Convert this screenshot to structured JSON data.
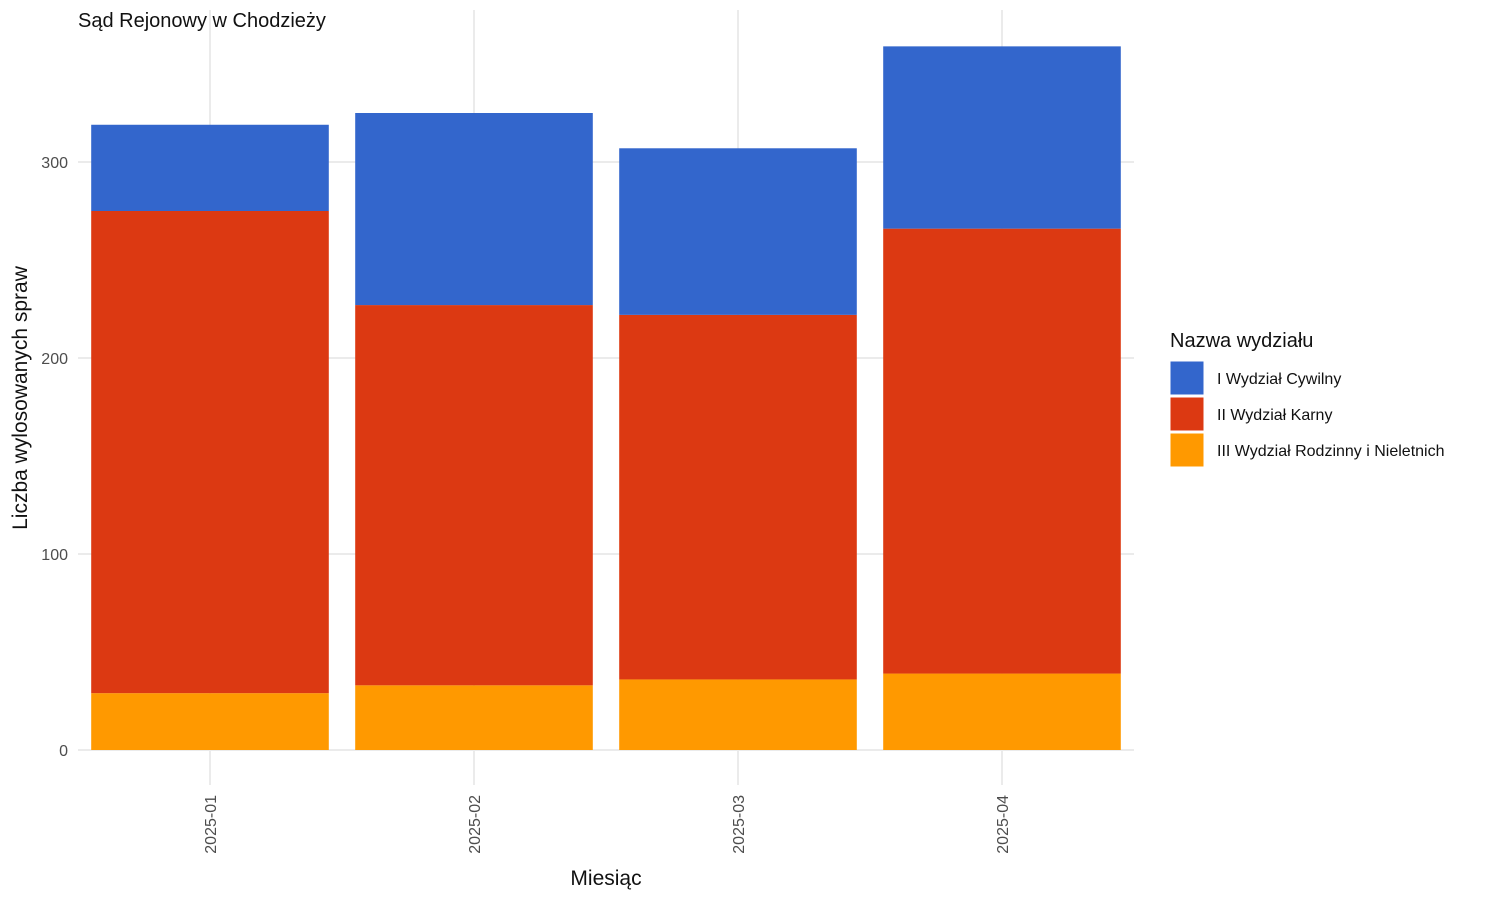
{
  "chart_data": {
    "type": "bar",
    "stacked": true,
    "title": "Sąd Rejonowy w Chodzieży",
    "xlabel": "Miesiąc",
    "ylabel": "Liczba wylosowanych spraw",
    "categories": [
      "2025-01",
      "2025-02",
      "2025-03",
      "2025-04"
    ],
    "ylim": [
      0,
      375
    ],
    "yticks": [
      0,
      100,
      200,
      300
    ],
    "grid": true,
    "legend": {
      "title": "Nazwa wydziału",
      "placement": "right"
    },
    "series": [
      {
        "name": "III Wydział Rodzinny i Nieletnich",
        "color": "#FF9900",
        "values": [
          29,
          33,
          36,
          39
        ]
      },
      {
        "name": "II Wydział Karny",
        "color": "#DC3912",
        "values": [
          246,
          194,
          186,
          227
        ]
      },
      {
        "name": "I Wydział Cywilny",
        "color": "#3366CC",
        "values": [
          44,
          98,
          85,
          93
        ]
      }
    ],
    "legend_order": [
      "I Wydział Cywilny",
      "II Wydział Karny",
      "III Wydział Rodzinny i Nieletnich"
    ]
  }
}
